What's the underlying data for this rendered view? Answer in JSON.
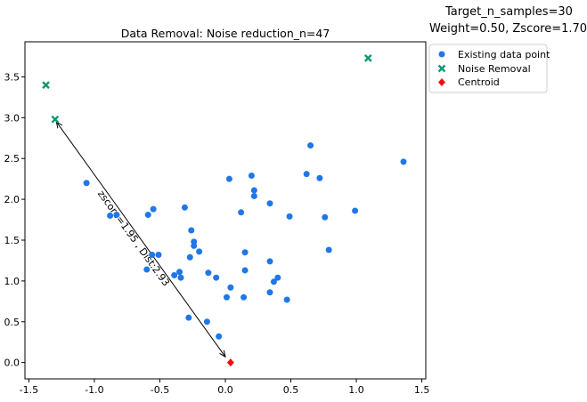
{
  "header": {
    "target_line": "Target_n_samples=30",
    "params_line": "Weight=0.50, Zscore=1.70"
  },
  "chart_data": {
    "type": "scatter",
    "title": "Data Removal: Noise reduction_n=47",
    "xlabel": "",
    "ylabel": "",
    "xlim": [
      -1.53,
      1.53
    ],
    "ylim": [
      -0.2,
      3.93
    ],
    "xticks": [
      "-1.5",
      "-1.0",
      "-0.5",
      "0.0",
      "0.5",
      "1.0",
      "1.5"
    ],
    "xtick_values": [
      -1.5,
      -1.0,
      -0.5,
      0.0,
      0.5,
      1.0,
      1.5
    ],
    "yticks": [
      "0.0",
      "0.5",
      "1.0",
      "1.5",
      "2.0",
      "2.5",
      "3.0",
      "3.5"
    ],
    "ytick_values": [
      0.0,
      0.5,
      1.0,
      1.5,
      2.0,
      2.5,
      3.0,
      3.5
    ],
    "grid": false,
    "legend_position": "outside-top-right",
    "series": [
      {
        "name": "Existing data point",
        "marker": "circle",
        "color": "#1f77e8",
        "points": [
          [
            -1.06,
            2.2
          ],
          [
            -0.88,
            1.8
          ],
          [
            -0.83,
            1.81
          ],
          [
            -0.59,
            1.81
          ],
          [
            -0.55,
            1.88
          ],
          [
            -0.31,
            1.9
          ],
          [
            -0.56,
            1.32
          ],
          [
            -0.51,
            1.32
          ],
          [
            -0.6,
            1.14
          ],
          [
            -0.39,
            1.07
          ],
          [
            -0.35,
            1.11
          ],
          [
            -0.34,
            1.04
          ],
          [
            -0.27,
            1.29
          ],
          [
            -0.26,
            1.62
          ],
          [
            -0.24,
            1.48
          ],
          [
            -0.24,
            1.43
          ],
          [
            -0.2,
            1.36
          ],
          [
            -0.13,
            1.1
          ],
          [
            -0.07,
            1.04
          ],
          [
            -0.28,
            0.55
          ],
          [
            -0.14,
            0.5
          ],
          [
            -0.05,
            0.32
          ],
          [
            0.01,
            0.8
          ],
          [
            0.04,
            0.92
          ],
          [
            0.03,
            2.25
          ],
          [
            0.12,
            1.84
          ],
          [
            0.2,
            2.29
          ],
          [
            0.22,
            2.11
          ],
          [
            0.22,
            2.04
          ],
          [
            0.15,
            1.35
          ],
          [
            0.15,
            1.13
          ],
          [
            0.14,
            0.8
          ],
          [
            0.34,
            1.95
          ],
          [
            0.34,
            1.24
          ],
          [
            0.34,
            0.86
          ],
          [
            0.37,
            0.99
          ],
          [
            0.4,
            1.04
          ],
          [
            0.47,
            0.77
          ],
          [
            0.49,
            1.79
          ],
          [
            0.62,
            2.31
          ],
          [
            0.65,
            2.66
          ],
          [
            0.72,
            2.26
          ],
          [
            0.76,
            1.78
          ],
          [
            0.79,
            1.38
          ],
          [
            0.99,
            1.86
          ],
          [
            1.36,
            2.46
          ]
        ]
      },
      {
        "name": "Noise Removal",
        "marker": "x",
        "color": "#109873",
        "points": [
          [
            -1.37,
            3.4
          ],
          [
            -1.3,
            2.98
          ],
          [
            1.09,
            3.73
          ]
        ]
      },
      {
        "name": "Centroid",
        "marker": "diamond",
        "color": "#ee1111",
        "points": [
          [
            0.04,
            0.0
          ]
        ]
      }
    ],
    "annotations": [
      {
        "text": "zscore=1.95 , Dist:2.93",
        "arrow_from": [
          -1.29,
          2.95
        ],
        "arrow_to": [
          0.0,
          0.07
        ],
        "label_anchor": [
          -0.72,
          1.5
        ]
      }
    ]
  }
}
